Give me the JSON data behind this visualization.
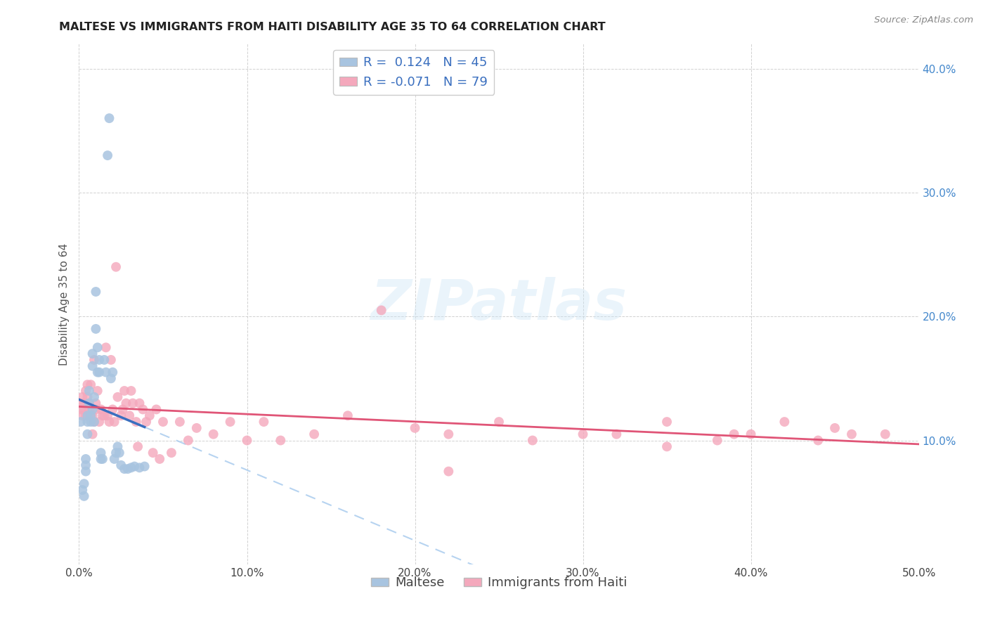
{
  "title": "MALTESE VS IMMIGRANTS FROM HAITI DISABILITY AGE 35 TO 64 CORRELATION CHART",
  "source": "Source: ZipAtlas.com",
  "ylabel": "Disability Age 35 to 64",
  "xlim": [
    0.0,
    0.5
  ],
  "ylim": [
    0.0,
    0.42
  ],
  "xticks": [
    0.0,
    0.1,
    0.2,
    0.3,
    0.4,
    0.5
  ],
  "yticks": [
    0.1,
    0.2,
    0.3,
    0.4
  ],
  "xtick_labels": [
    "0.0%",
    "10.0%",
    "20.0%",
    "30.0%",
    "40.0%",
    "50.0%"
  ],
  "ytick_labels": [
    "10.0%",
    "20.0%",
    "30.0%",
    "40.0%"
  ],
  "r_maltese": 0.124,
  "n_maltese": 45,
  "r_haiti": -0.071,
  "n_haiti": 79,
  "color_maltese": "#a8c4e0",
  "color_haiti": "#f4a8bc",
  "color_line_maltese_solid": "#3a6fbf",
  "color_line_haiti_solid": "#e05577",
  "color_dashed_blue": "#aaccee",
  "watermark_color": "#cce4f5",
  "maltese_x": [
    0.001,
    0.002,
    0.003,
    0.003,
    0.004,
    0.004,
    0.004,
    0.005,
    0.005,
    0.005,
    0.006,
    0.006,
    0.007,
    0.007,
    0.008,
    0.008,
    0.008,
    0.009,
    0.009,
    0.01,
    0.01,
    0.011,
    0.011,
    0.012,
    0.012,
    0.013,
    0.013,
    0.014,
    0.015,
    0.016,
    0.017,
    0.018,
    0.019,
    0.02,
    0.021,
    0.022,
    0.023,
    0.024,
    0.025,
    0.027,
    0.029,
    0.031,
    0.033,
    0.036,
    0.039
  ],
  "maltese_y": [
    0.115,
    0.06,
    0.065,
    0.055,
    0.08,
    0.075,
    0.085,
    0.115,
    0.12,
    0.105,
    0.13,
    0.14,
    0.12,
    0.115,
    0.125,
    0.16,
    0.17,
    0.115,
    0.135,
    0.19,
    0.22,
    0.175,
    0.155,
    0.155,
    0.165,
    0.085,
    0.09,
    0.085,
    0.165,
    0.155,
    0.33,
    0.36,
    0.15,
    0.155,
    0.085,
    0.09,
    0.095,
    0.09,
    0.08,
    0.077,
    0.077,
    0.078,
    0.079,
    0.078,
    0.079
  ],
  "haiti_x": [
    0.001,
    0.001,
    0.002,
    0.002,
    0.003,
    0.003,
    0.004,
    0.004,
    0.005,
    0.005,
    0.006,
    0.006,
    0.007,
    0.007,
    0.008,
    0.008,
    0.009,
    0.009,
    0.01,
    0.01,
    0.011,
    0.012,
    0.013,
    0.014,
    0.015,
    0.016,
    0.017,
    0.018,
    0.019,
    0.02,
    0.021,
    0.022,
    0.023,
    0.025,
    0.026,
    0.027,
    0.028,
    0.03,
    0.031,
    0.032,
    0.034,
    0.035,
    0.036,
    0.038,
    0.04,
    0.042,
    0.044,
    0.046,
    0.048,
    0.05,
    0.055,
    0.06,
    0.065,
    0.07,
    0.08,
    0.09,
    0.1,
    0.11,
    0.12,
    0.14,
    0.16,
    0.18,
    0.2,
    0.22,
    0.25,
    0.27,
    0.3,
    0.32,
    0.35,
    0.38,
    0.4,
    0.42,
    0.44,
    0.46,
    0.48,
    0.35,
    0.22,
    0.39,
    0.45
  ],
  "haiti_y": [
    0.125,
    0.13,
    0.135,
    0.12,
    0.13,
    0.125,
    0.12,
    0.14,
    0.135,
    0.145,
    0.13,
    0.125,
    0.145,
    0.12,
    0.12,
    0.105,
    0.115,
    0.165,
    0.125,
    0.13,
    0.14,
    0.115,
    0.125,
    0.12,
    0.12,
    0.175,
    0.12,
    0.115,
    0.165,
    0.125,
    0.115,
    0.24,
    0.135,
    0.12,
    0.125,
    0.14,
    0.13,
    0.12,
    0.14,
    0.13,
    0.115,
    0.095,
    0.13,
    0.125,
    0.115,
    0.12,
    0.09,
    0.125,
    0.085,
    0.115,
    0.09,
    0.115,
    0.1,
    0.11,
    0.105,
    0.115,
    0.1,
    0.115,
    0.1,
    0.105,
    0.12,
    0.205,
    0.11,
    0.105,
    0.115,
    0.1,
    0.105,
    0.105,
    0.115,
    0.1,
    0.105,
    0.115,
    0.1,
    0.105,
    0.105,
    0.095,
    0.075,
    0.105,
    0.11
  ]
}
